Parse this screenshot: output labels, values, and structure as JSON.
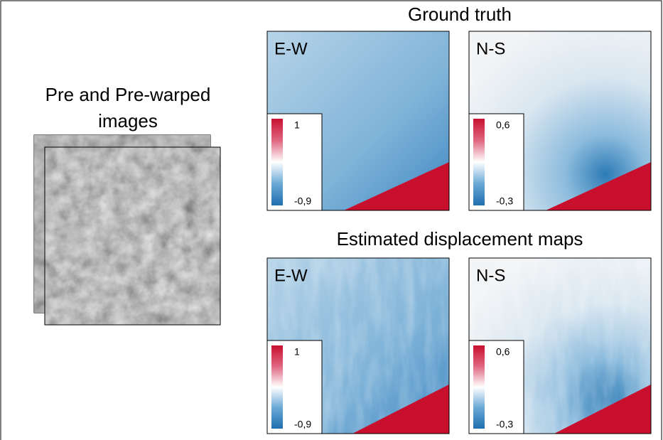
{
  "left": {
    "title_lines": [
      "Pre and Pre-warped",
      "images"
    ]
  },
  "sections": [
    {
      "title": "Ground truth",
      "panels": [
        {
          "label": "E-W",
          "colorbar": {
            "max": "1",
            "min": "-0,9"
          }
        },
        {
          "label": "N-S",
          "colorbar": {
            "max": "0,6",
            "min": "-0,3"
          }
        }
      ]
    },
    {
      "title": "Estimated displacement maps",
      "panels": [
        {
          "label": "E-W",
          "colorbar": {
            "max": "1",
            "min": "-0,9"
          }
        },
        {
          "label": "N-S",
          "colorbar": {
            "max": "0,6",
            "min": "-0,3"
          }
        }
      ]
    }
  ]
}
